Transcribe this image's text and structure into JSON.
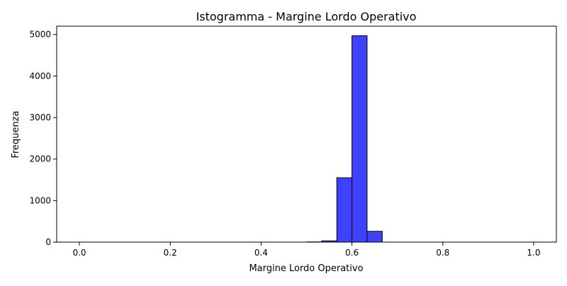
{
  "chart_data": {
    "type": "bar",
    "title": "Istogramma - Margine Lordo Operativo",
    "xlabel": "Margine Lordo Operativo",
    "ylabel": "Frequenza",
    "xlim": [
      -0.05,
      1.05
    ],
    "ylim": [
      0,
      5200
    ],
    "xticks": [
      0.0,
      0.2,
      0.4,
      0.6,
      0.8,
      1.0
    ],
    "xtick_labels": [
      "0.0",
      "0.2",
      "0.4",
      "0.6",
      "0.8",
      "1.0"
    ],
    "yticks": [
      0,
      1000,
      2000,
      3000,
      4000,
      5000
    ],
    "ytick_labels": [
      "0",
      "1000",
      "2000",
      "3000",
      "4000",
      "5000"
    ],
    "bin_width": 0.0333,
    "bins": [
      {
        "x0": 0.0,
        "x1": 0.0333,
        "count": 0
      },
      {
        "x0": 0.0333,
        "x1": 0.0667,
        "count": 0
      },
      {
        "x0": 0.0667,
        "x1": 0.1,
        "count": 0
      },
      {
        "x0": 0.1,
        "x1": 0.1333,
        "count": 0
      },
      {
        "x0": 0.1333,
        "x1": 0.1667,
        "count": 0
      },
      {
        "x0": 0.1667,
        "x1": 0.2,
        "count": 0
      },
      {
        "x0": 0.2,
        "x1": 0.2333,
        "count": 0
      },
      {
        "x0": 0.2333,
        "x1": 0.2667,
        "count": 0
      },
      {
        "x0": 0.2667,
        "x1": 0.3,
        "count": 0
      },
      {
        "x0": 0.3,
        "x1": 0.3333,
        "count": 0
      },
      {
        "x0": 0.3333,
        "x1": 0.3667,
        "count": 0
      },
      {
        "x0": 0.3667,
        "x1": 0.4,
        "count": 0
      },
      {
        "x0": 0.4,
        "x1": 0.4333,
        "count": 0
      },
      {
        "x0": 0.4333,
        "x1": 0.4667,
        "count": 0
      },
      {
        "x0": 0.4667,
        "x1": 0.5,
        "count": 0
      },
      {
        "x0": 0.5,
        "x1": 0.5333,
        "count": 5
      },
      {
        "x0": 0.5333,
        "x1": 0.5667,
        "count": 30
      },
      {
        "x0": 0.5667,
        "x1": 0.6,
        "count": 1550
      },
      {
        "x0": 0.6,
        "x1": 0.6333,
        "count": 4970
      },
      {
        "x0": 0.6333,
        "x1": 0.6667,
        "count": 260
      },
      {
        "x0": 0.6667,
        "x1": 0.7,
        "count": 0
      },
      {
        "x0": 0.7,
        "x1": 0.7333,
        "count": 0
      },
      {
        "x0": 0.7333,
        "x1": 0.7667,
        "count": 0
      },
      {
        "x0": 0.7667,
        "x1": 0.8,
        "count": 0
      },
      {
        "x0": 0.8,
        "x1": 0.8333,
        "count": 0
      },
      {
        "x0": 0.8333,
        "x1": 0.8667,
        "count": 0
      },
      {
        "x0": 0.8667,
        "x1": 0.9,
        "count": 0
      },
      {
        "x0": 0.9,
        "x1": 0.9333,
        "count": 0
      },
      {
        "x0": 0.9333,
        "x1": 0.9667,
        "count": 0
      },
      {
        "x0": 0.9667,
        "x1": 1.0,
        "count": 0
      }
    ],
    "grid": false,
    "colors": {
      "bar_fill": "#4040ff",
      "bar_edge": "#000000"
    }
  }
}
